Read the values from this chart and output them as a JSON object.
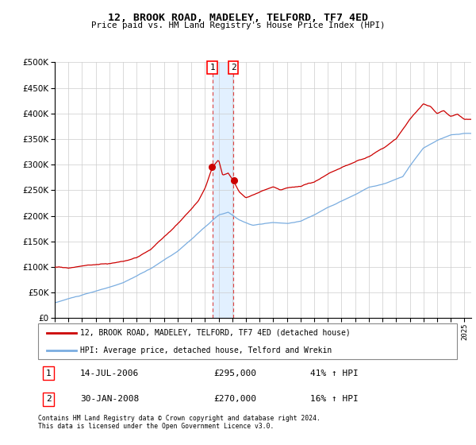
{
  "title": "12, BROOK ROAD, MADELEY, TELFORD, TF7 4ED",
  "subtitle": "Price paid vs. HM Land Registry's House Price Index (HPI)",
  "legend_line1": "12, BROOK ROAD, MADELEY, TELFORD, TF7 4ED (detached house)",
  "legend_line2": "HPI: Average price, detached house, Telford and Wrekin",
  "footnote": "Contains HM Land Registry data © Crown copyright and database right 2024.\nThis data is licensed under the Open Government Licence v3.0.",
  "transaction1_label": "1",
  "transaction1_date": "14-JUL-2006",
  "transaction1_price": "£295,000",
  "transaction1_hpi": "41% ↑ HPI",
  "transaction2_label": "2",
  "transaction2_date": "30-JAN-2008",
  "transaction2_price": "£270,000",
  "transaction2_hpi": "16% ↑ HPI",
  "ylim": [
    0,
    500000
  ],
  "yticks": [
    0,
    50000,
    100000,
    150000,
    200000,
    250000,
    300000,
    350000,
    400000,
    450000,
    500000
  ],
  "red_color": "#cc0000",
  "blue_color": "#7aade0",
  "shaded_color": "#ddeeff",
  "transaction1_year": 2006.54,
  "transaction2_year": 2008.08,
  "transaction1_price_val": 295000,
  "transaction2_price_val": 270000,
  "xlim_start": 1995,
  "xlim_end": 2025.5
}
